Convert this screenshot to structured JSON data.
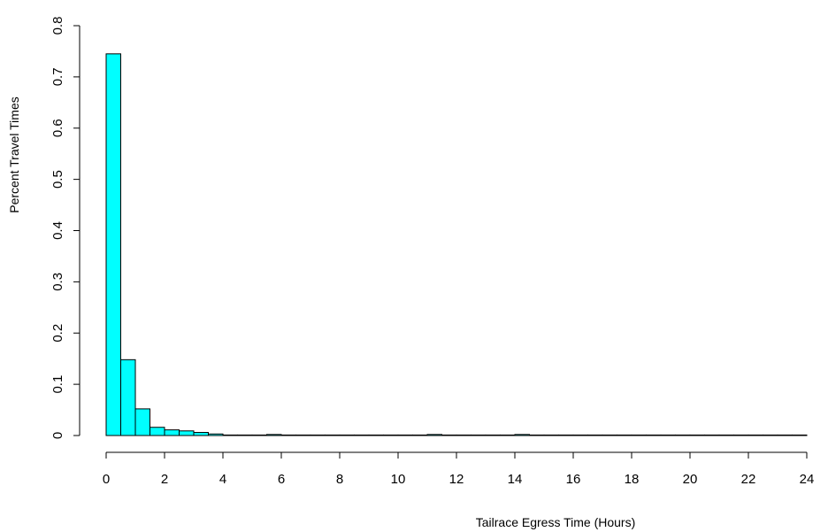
{
  "chart_data": {
    "type": "bar",
    "title": "",
    "xlabel": "Tailrace Egress Time (Hours)",
    "ylabel": "Percent Travel Times",
    "bar_color": "#00FFFF",
    "bar_outline": "#000000",
    "bin_width": 0.5,
    "xlim": [
      0,
      24
    ],
    "ylim": [
      0,
      0.8
    ],
    "x_ticks": [
      0,
      2,
      4,
      6,
      8,
      10,
      12,
      14,
      16,
      18,
      20,
      22,
      24
    ],
    "y_ticks": [
      0,
      0.1,
      0.2,
      0.3,
      0.4,
      0.5,
      0.6,
      0.7,
      0.8
    ],
    "y_tick_labels": [
      "0",
      "0.1",
      "0.2",
      "0.3",
      "0.4",
      "0.5",
      "0.6",
      "0.7",
      "0.8"
    ],
    "bin_starts": [
      0,
      0.5,
      1,
      1.5,
      2,
      2.5,
      3,
      3.5,
      4,
      4.5,
      5,
      5.5,
      6,
      6.5,
      7,
      7.5,
      8,
      8.5,
      9,
      9.5,
      10,
      10.5,
      11,
      11.5,
      12,
      12.5,
      13,
      13.5,
      14,
      14.5,
      15,
      15.5,
      16,
      16.5,
      17,
      17.5,
      18,
      18.5,
      19,
      19.5,
      20,
      20.5,
      21,
      21.5,
      22,
      22.5,
      23,
      23.5
    ],
    "values": [
      0.745,
      0.148,
      0.052,
      0.016,
      0.011,
      0.009,
      0.006,
      0.003,
      0.001,
      0.001,
      0.001,
      0.002,
      0.001,
      0.001,
      0.001,
      0.001,
      0.001,
      0.001,
      0.001,
      0.001,
      0.001,
      0.001,
      0.002,
      0.001,
      0.001,
      0.001,
      0.001,
      0.001,
      0.002,
      0.001,
      0.001,
      0.001,
      0.001,
      0.001,
      0.001,
      0.001,
      0.001,
      0.001,
      0.001,
      0.001,
      0.001,
      0.001,
      0.001,
      0.001,
      0.001,
      0.001,
      0.001,
      0.001
    ]
  }
}
